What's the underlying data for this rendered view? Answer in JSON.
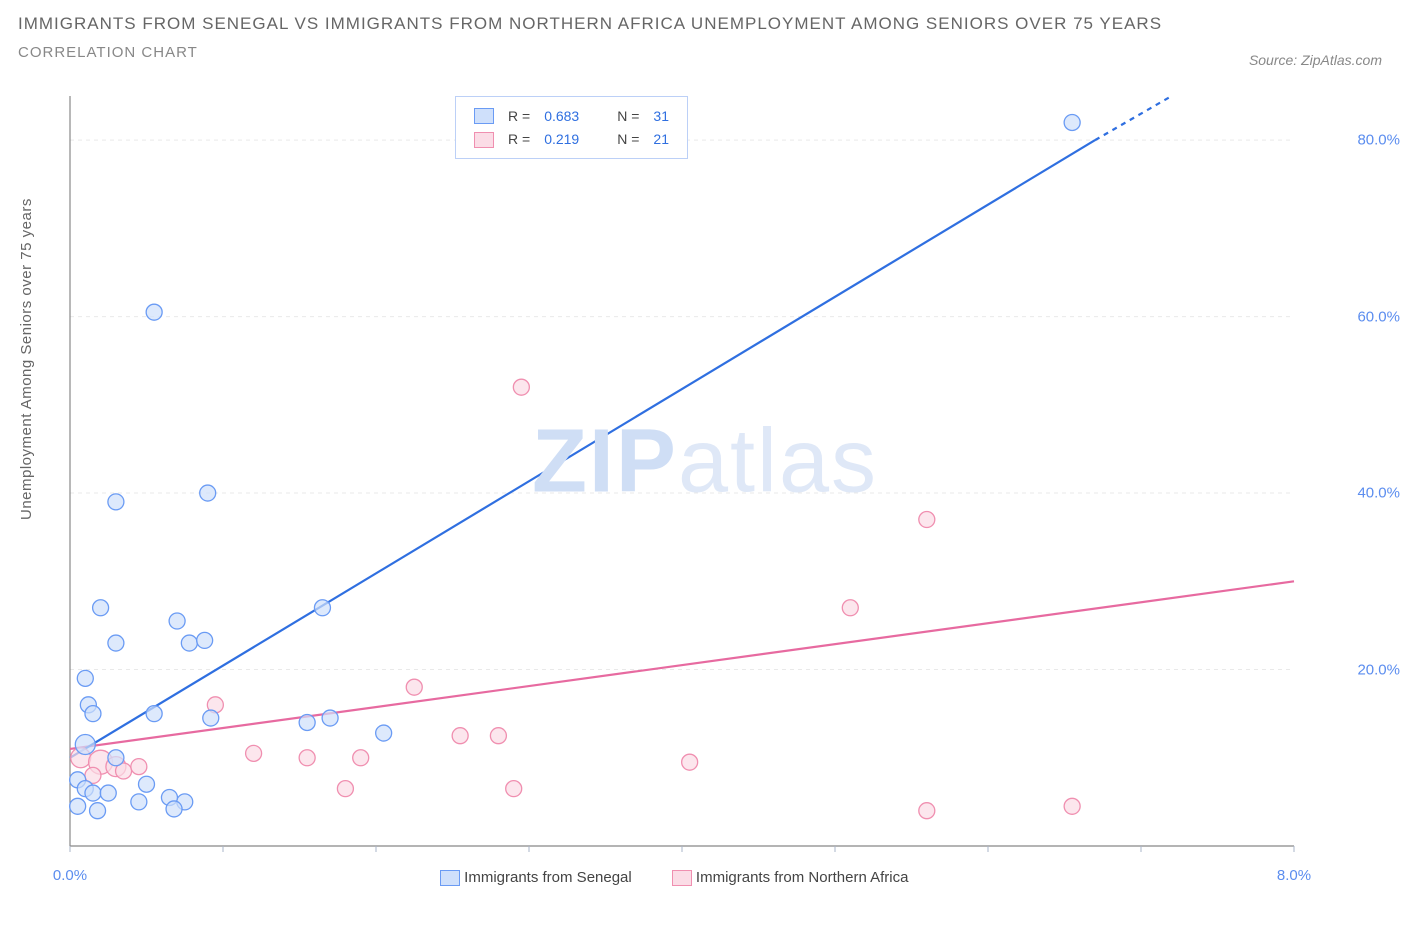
{
  "title_line1": "IMMIGRANTS FROM SENEGAL VS IMMIGRANTS FROM NORTHERN AFRICA UNEMPLOYMENT AMONG SENIORS OVER 75 YEARS",
  "title_line2": "CORRELATION CHART",
  "source_label": "Source: ZipAtlas.com",
  "ylabel": "Unemployment Among Seniors over 75 years",
  "watermark_bold": "ZIP",
  "watermark_light": "atlas",
  "chart": {
    "type": "scatter-with-regression",
    "background_color": "#ffffff",
    "grid_color": "#e9e9e9",
    "tick_color": "#aab4c8",
    "axis_label_color": "#5b8def",
    "xlim": [
      0.0,
      8.0
    ],
    "ylim": [
      0.0,
      85.0
    ],
    "x_ticks_minor": [
      0.0,
      1.0,
      2.0,
      3.0,
      4.0,
      5.0,
      6.0,
      7.0,
      8.0
    ],
    "x_tick_labels": [
      {
        "v": 0.0,
        "label": "0.0%"
      },
      {
        "v": 8.0,
        "label": "8.0%"
      }
    ],
    "y_tick_labels": [
      {
        "v": 20.0,
        "label": "20.0%"
      },
      {
        "v": 40.0,
        "label": "40.0%"
      },
      {
        "v": 60.0,
        "label": "60.0%"
      },
      {
        "v": 80.0,
        "label": "80.0%"
      }
    ],
    "y_gridlines": [
      20.0,
      40.0,
      60.0,
      80.0
    ]
  },
  "series": {
    "senegal": {
      "label": "Immigrants from Senegal",
      "fill": "#cfe0fb",
      "stroke": "#6a9bf4",
      "line_color": "#2f6fe0",
      "marker_radius": 8,
      "line_width": 2.2,
      "R": "0.683",
      "N": "31",
      "regression": {
        "x1": 0.0,
        "y1": 10.0,
        "x2": 6.7,
        "y2": 80.0,
        "extend_x2": 7.2,
        "extend_y2": 85.0
      },
      "points": [
        {
          "x": 6.55,
          "y": 82.0,
          "r": 8
        },
        {
          "x": 0.55,
          "y": 60.5,
          "r": 8
        },
        {
          "x": 0.3,
          "y": 39.0,
          "r": 8
        },
        {
          "x": 0.9,
          "y": 40.0,
          "r": 8
        },
        {
          "x": 1.65,
          "y": 27.0,
          "r": 8
        },
        {
          "x": 0.2,
          "y": 27.0,
          "r": 8
        },
        {
          "x": 0.7,
          "y": 25.5,
          "r": 8
        },
        {
          "x": 0.78,
          "y": 23.0,
          "r": 8
        },
        {
          "x": 0.88,
          "y": 23.3,
          "r": 8
        },
        {
          "x": 0.3,
          "y": 23.0,
          "r": 8
        },
        {
          "x": 0.1,
          "y": 19.0,
          "r": 8
        },
        {
          "x": 0.12,
          "y": 16.0,
          "r": 8
        },
        {
          "x": 0.15,
          "y": 15.0,
          "r": 8
        },
        {
          "x": 0.55,
          "y": 15.0,
          "r": 8
        },
        {
          "x": 0.92,
          "y": 14.5,
          "r": 8
        },
        {
          "x": 1.55,
          "y": 14.0,
          "r": 8
        },
        {
          "x": 1.7,
          "y": 14.5,
          "r": 8
        },
        {
          "x": 2.05,
          "y": 12.8,
          "r": 8
        },
        {
          "x": 0.1,
          "y": 11.5,
          "r": 10
        },
        {
          "x": 0.3,
          "y": 10.0,
          "r": 8
        },
        {
          "x": 0.05,
          "y": 7.5,
          "r": 8
        },
        {
          "x": 0.1,
          "y": 6.5,
          "r": 8
        },
        {
          "x": 0.15,
          "y": 6.0,
          "r": 8
        },
        {
          "x": 0.25,
          "y": 6.0,
          "r": 8
        },
        {
          "x": 0.5,
          "y": 7.0,
          "r": 8
        },
        {
          "x": 0.45,
          "y": 5.0,
          "r": 8
        },
        {
          "x": 0.75,
          "y": 5.0,
          "r": 8
        },
        {
          "x": 0.05,
          "y": 4.5,
          "r": 8
        },
        {
          "x": 0.18,
          "y": 4.0,
          "r": 8
        },
        {
          "x": 0.65,
          "y": 5.5,
          "r": 8
        },
        {
          "x": 0.68,
          "y": 4.2,
          "r": 8
        }
      ]
    },
    "nafrica": {
      "label": "Immigrants from Northern Africa",
      "fill": "#fbdce6",
      "stroke": "#f08fb0",
      "line_color": "#e76aa0",
      "marker_radius": 8,
      "line_width": 2.2,
      "R": "0.219",
      "N": "21",
      "regression": {
        "x1": 0.0,
        "y1": 11.0,
        "x2": 8.0,
        "y2": 30.0
      },
      "points": [
        {
          "x": 2.95,
          "y": 52.0,
          "r": 8
        },
        {
          "x": 5.6,
          "y": 37.0,
          "r": 8
        },
        {
          "x": 5.1,
          "y": 27.0,
          "r": 8
        },
        {
          "x": 2.25,
          "y": 18.0,
          "r": 8
        },
        {
          "x": 0.95,
          "y": 16.0,
          "r": 8
        },
        {
          "x": 1.2,
          "y": 10.5,
          "r": 8
        },
        {
          "x": 1.55,
          "y": 10.0,
          "r": 8
        },
        {
          "x": 1.9,
          "y": 10.0,
          "r": 8
        },
        {
          "x": 2.55,
          "y": 12.5,
          "r": 8
        },
        {
          "x": 2.8,
          "y": 12.5,
          "r": 8
        },
        {
          "x": 1.8,
          "y": 6.5,
          "r": 8
        },
        {
          "x": 4.05,
          "y": 9.5,
          "r": 8
        },
        {
          "x": 2.9,
          "y": 6.5,
          "r": 8
        },
        {
          "x": 5.6,
          "y": 4.0,
          "r": 8
        },
        {
          "x": 6.55,
          "y": 4.5,
          "r": 8
        },
        {
          "x": 0.07,
          "y": 10.0,
          "r": 10
        },
        {
          "x": 0.2,
          "y": 9.5,
          "r": 12
        },
        {
          "x": 0.3,
          "y": 9.0,
          "r": 10
        },
        {
          "x": 0.15,
          "y": 8.0,
          "r": 8
        },
        {
          "x": 0.35,
          "y": 8.5,
          "r": 8
        },
        {
          "x": 0.45,
          "y": 9.0,
          "r": 8
        }
      ]
    }
  },
  "legend_top": {
    "R_label": "R =",
    "N_label": "N ="
  }
}
